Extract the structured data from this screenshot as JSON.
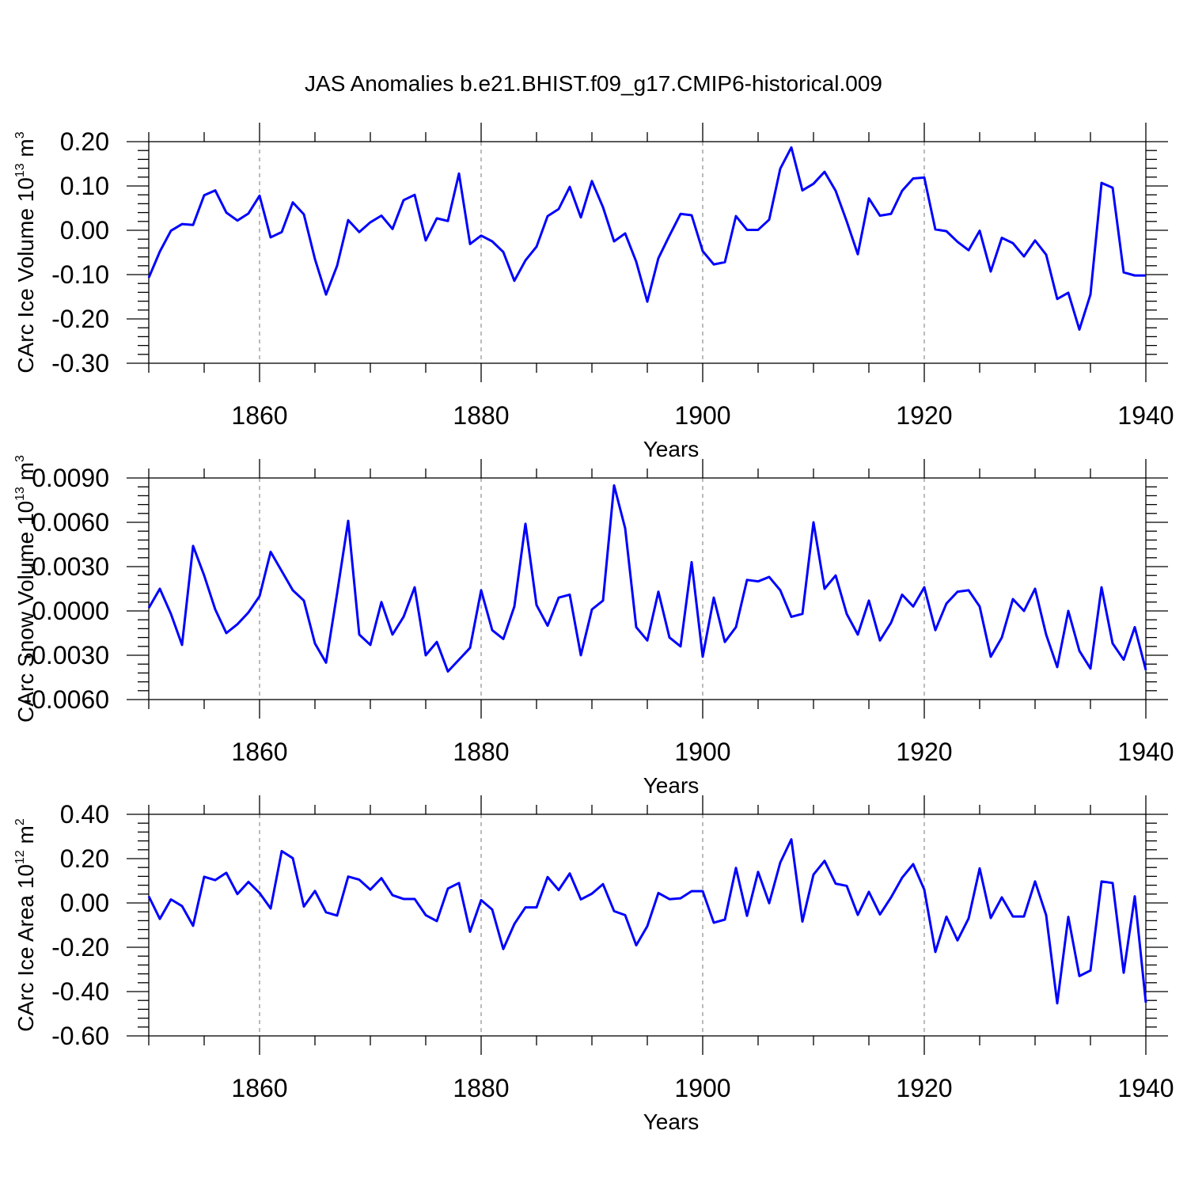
{
  "title": "JAS Anomalies b.e21.BHIST.f09_g17.CMIP6-historical.009",
  "colors": {
    "line": "#0000ff",
    "frame": "#000000"
  },
  "chart_data": [
    {
      "type": "line",
      "id": "ice-volume",
      "ylabel": {
        "prefix": "CArc Ice Volume 10",
        "exp": "13",
        "unit": " m",
        "unit_exp": "3"
      },
      "xlabel": "Years",
      "xlim": [
        1850,
        1940
      ],
      "ylim": [
        -0.3,
        0.2
      ],
      "yticks": [
        -0.3,
        -0.2,
        -0.1,
        0.0,
        0.1,
        0.2
      ],
      "ytick_labels": [
        "-0.30",
        "-0.20",
        "-0.10",
        "0.00",
        "0.10",
        "0.20"
      ],
      "xticks": [
        1860,
        1880,
        1900,
        1920,
        1940
      ],
      "xtick_labels": [
        "1860",
        "1880",
        "1900",
        "1920",
        "1940"
      ],
      "series": [
        {
          "name": "CArc Ice Volume",
          "x_start": 1850,
          "values": [
            -0.107,
            -0.048,
            -0.001,
            0.014,
            0.012,
            0.079,
            0.09,
            0.04,
            0.022,
            0.038,
            0.078,
            -0.016,
            -0.004,
            0.063,
            0.036,
            -0.065,
            -0.145,
            -0.08,
            0.023,
            -0.004,
            0.018,
            0.033,
            0.003,
            0.068,
            0.08,
            -0.023,
            0.027,
            0.021,
            0.128,
            -0.031,
            -0.012,
            -0.025,
            -0.049,
            -0.114,
            -0.068,
            -0.037,
            0.032,
            0.048,
            0.098,
            0.029,
            0.111,
            0.052,
            -0.025,
            -0.007,
            -0.071,
            -0.161,
            -0.063,
            -0.012,
            0.037,
            0.034,
            -0.047,
            -0.077,
            -0.072,
            0.032,
            0.001,
            0.001,
            0.024,
            0.139,
            0.187,
            0.09,
            0.105,
            0.132,
            0.089,
            0.02,
            -0.054,
            0.072,
            0.033,
            0.037,
            0.089,
            0.117,
            0.119,
            0.002,
            -0.002,
            -0.026,
            -0.045,
            -0.001,
            -0.093,
            -0.017,
            -0.029,
            -0.059,
            -0.023,
            -0.055,
            -0.155,
            -0.141,
            -0.224,
            -0.145,
            0.107,
            0.096,
            -0.095,
            -0.102,
            -0.102
          ]
        }
      ]
    },
    {
      "type": "line",
      "id": "snow-volume",
      "ylabel": {
        "prefix": "CArc Snow Volume 10",
        "exp": "13",
        "unit": " m",
        "unit_exp": "3"
      },
      "xlabel": "Years",
      "xlim": [
        1850,
        1940
      ],
      "ylim": [
        -0.006,
        0.009
      ],
      "yticks": [
        -0.006,
        -0.003,
        0.0,
        0.003,
        0.006,
        0.009
      ],
      "ytick_labels": [
        "-0.0060",
        "-0.0030",
        "0.0000",
        "0.0030",
        "0.0060",
        "0.0090"
      ],
      "xticks": [
        1860,
        1880,
        1900,
        1920,
        1940
      ],
      "xtick_labels": [
        "1860",
        "1880",
        "1900",
        "1920",
        "1940"
      ],
      "series": [
        {
          "name": "CArc Snow Volume",
          "x_start": 1850,
          "values": [
            0.0002,
            0.0015,
            -0.0002,
            -0.0023,
            0.0044,
            0.0024,
            0.0001,
            -0.0015,
            -0.0009,
            -0.0001,
            0.001,
            0.004,
            0.0027,
            0.0014,
            0.0007,
            -0.0022,
            -0.0035,
            0.0012,
            0.0061,
            -0.0016,
            -0.0023,
            0.0006,
            -0.0016,
            -0.0004,
            0.0016,
            -0.003,
            -0.0021,
            -0.0041,
            -0.0033,
            -0.0025,
            0.0014,
            -0.0013,
            -0.0019,
            0.0003,
            0.0059,
            0.0004,
            -0.001,
            0.0009,
            0.0011,
            -0.003,
            0.0001,
            0.0007,
            0.0085,
            0.0056,
            -0.0011,
            -0.002,
            0.0013,
            -0.0018,
            -0.0024,
            0.0033,
            -0.0031,
            0.0009,
            -0.0021,
            -0.0011,
            0.0021,
            0.002,
            0.0023,
            0.0014,
            -0.0004,
            -0.0002,
            0.006,
            0.0015,
            0.0024,
            -0.0002,
            -0.0016,
            0.0007,
            -0.002,
            -0.0008,
            0.0011,
            0.0003,
            0.0016,
            -0.0013,
            0.0005,
            0.0013,
            0.0014,
            0.0003,
            -0.0031,
            -0.0018,
            0.0008,
            0.0,
            0.0015,
            -0.0016,
            -0.0038,
            0.0,
            -0.0027,
            -0.0039,
            0.0016,
            -0.0022,
            -0.0033,
            -0.0011,
            -0.004
          ]
        }
      ]
    },
    {
      "type": "line",
      "id": "ice-area",
      "ylabel": {
        "prefix": "CArc Ice Area 10",
        "exp": "12",
        "unit": " m",
        "unit_exp": "2"
      },
      "xlabel": "Years",
      "xlim": [
        1850,
        1940
      ],
      "ylim": [
        -0.6,
        0.4
      ],
      "yticks": [
        -0.6,
        -0.4,
        -0.2,
        0.0,
        0.2,
        0.4
      ],
      "ytick_labels": [
        "-0.60",
        "-0.40",
        "-0.20",
        "0.00",
        "0.20",
        "0.40"
      ],
      "xticks": [
        1860,
        1880,
        1900,
        1920,
        1940
      ],
      "xtick_labels": [
        "1860",
        "1880",
        "1900",
        "1920",
        "1940"
      ],
      "series": [
        {
          "name": "CArc Ice Area",
          "x_start": 1850,
          "values": [
            0.03,
            -0.072,
            0.016,
            -0.014,
            -0.103,
            0.118,
            0.103,
            0.136,
            0.04,
            0.095,
            0.045,
            -0.025,
            0.234,
            0.202,
            -0.016,
            0.054,
            -0.042,
            -0.057,
            0.119,
            0.105,
            0.06,
            0.112,
            0.035,
            0.018,
            0.018,
            -0.055,
            -0.082,
            0.065,
            0.09,
            -0.13,
            0.013,
            -0.03,
            -0.208,
            -0.095,
            -0.02,
            -0.02,
            0.117,
            0.058,
            0.133,
            0.016,
            0.042,
            0.085,
            -0.037,
            -0.055,
            -0.191,
            -0.105,
            0.045,
            0.017,
            0.021,
            0.053,
            0.053,
            -0.089,
            -0.075,
            0.158,
            -0.058,
            0.14,
            -0.001,
            0.182,
            0.287,
            -0.084,
            0.128,
            0.19,
            0.087,
            0.077,
            -0.054,
            0.05,
            -0.052,
            0.025,
            0.114,
            0.175,
            0.06,
            -0.221,
            -0.062,
            -0.169,
            -0.07,
            0.156,
            -0.068,
            0.025,
            -0.061,
            -0.061,
            0.097,
            -0.055,
            -0.453,
            -0.063,
            -0.33,
            -0.305,
            0.097,
            0.09,
            -0.315,
            0.03,
            -0.45
          ]
        }
      ]
    }
  ]
}
